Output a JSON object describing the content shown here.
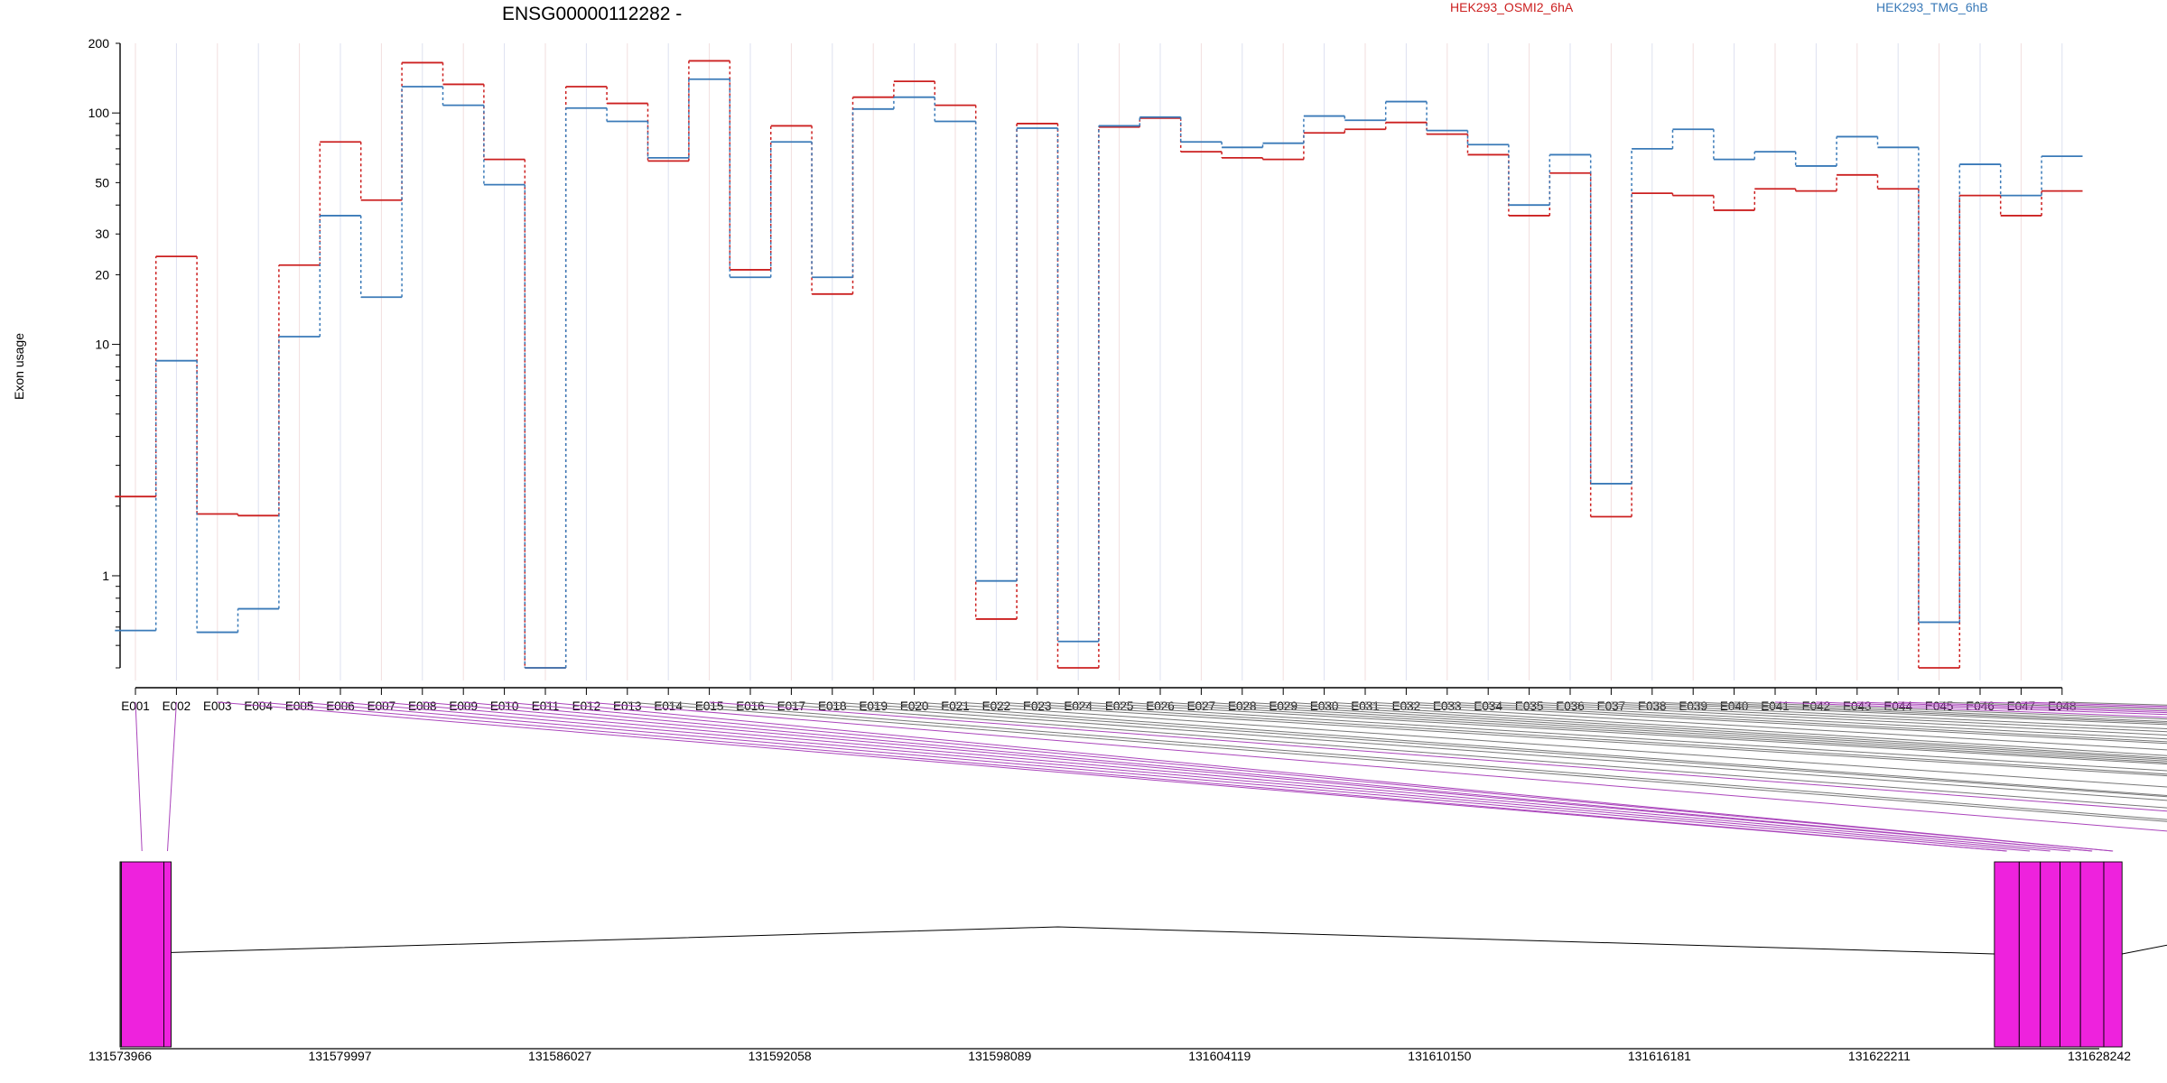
{
  "chart_data": {
    "type": "line",
    "title": "ENSG00000112282 -",
    "ylabel": "Exon usage",
    "yscale": "log",
    "ylim": [
      0.4,
      200
    ],
    "yticks": [
      1,
      10,
      20,
      30,
      50,
      100,
      200
    ],
    "categories": [
      "E001",
      "E002",
      "E003",
      "E004",
      "E005",
      "E006",
      "E007",
      "E008",
      "E009",
      "E010",
      "E011",
      "E012",
      "E013",
      "E014",
      "E015",
      "E016",
      "E017",
      "E018",
      "E019",
      "E020",
      "E021",
      "E022",
      "E023",
      "E024",
      "E025",
      "E026",
      "E027",
      "E028",
      "E029",
      "E030",
      "E031",
      "E032",
      "E033",
      "E034",
      "E035",
      "E036",
      "E037",
      "E038",
      "E039",
      "E040",
      "E041",
      "E042",
      "E043",
      "E044",
      "E045",
      "E046",
      "E047",
      "E048"
    ],
    "legend_position": "top",
    "series": [
      {
        "name": "HEK293_OSMI2_6hA",
        "color": "#cc2020",
        "values": [
          2.2,
          24,
          1.85,
          1.82,
          22,
          75,
          42,
          165,
          133,
          63,
          0.4,
          130,
          110,
          62,
          168,
          21,
          88,
          16.5,
          117,
          137,
          108,
          0.65,
          90,
          0.4,
          87,
          95,
          68,
          64,
          63,
          82,
          85,
          91,
          81,
          66,
          36,
          55,
          1.8,
          45,
          44,
          38,
          47,
          46,
          54,
          47,
          0.4,
          44,
          36,
          46
        ]
      },
      {
        "name": "HEK293_TMG_6hB",
        "color": "#3a7ab8",
        "values": [
          0.58,
          8.5,
          0.57,
          0.72,
          10.8,
          36,
          16,
          130,
          108,
          49,
          0.4,
          105,
          92,
          64,
          140,
          19.5,
          75,
          19.5,
          104,
          117,
          92,
          0.95,
          86,
          0.52,
          88,
          96,
          75,
          71,
          74,
          97,
          93,
          112,
          84,
          73,
          40,
          66,
          2.5,
          70,
          85,
          63,
          68,
          59,
          79,
          71,
          0.63,
          60,
          44,
          65
        ]
      }
    ]
  },
  "gene_model": {
    "coordinate_labels": [
      "131573966",
      "131579997",
      "131586027",
      "131592058",
      "131598089",
      "131604119",
      "131610150",
      "131616181",
      "131622211",
      "131628242"
    ],
    "magenta": "#ee22dd",
    "grey": "#cccccc"
  }
}
